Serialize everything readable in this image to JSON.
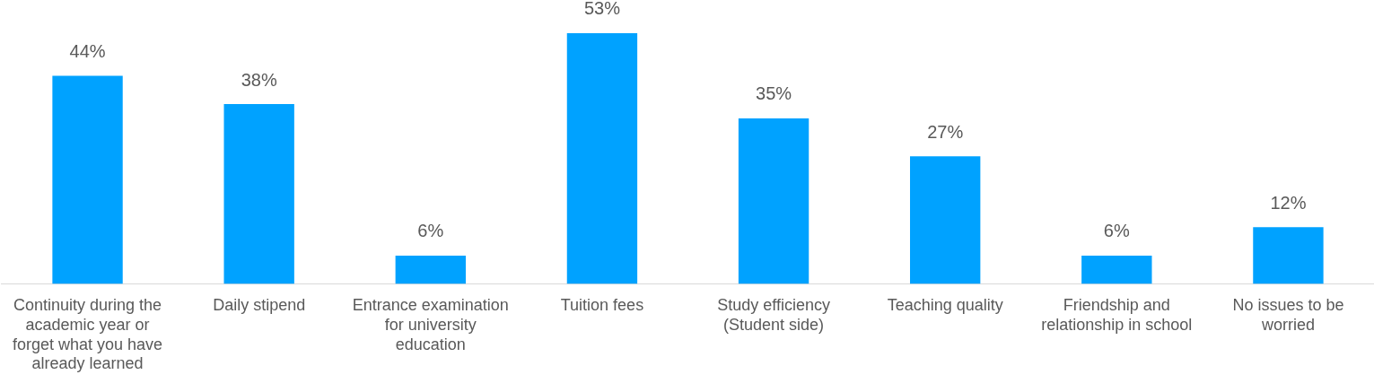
{
  "chart_data": {
    "type": "bar",
    "categories": [
      "Continuity during the academic year or forget what you have already learned",
      "Daily stipend",
      "Entrance examination for university education",
      "Tuition fees",
      "Study efficiency (Student side)",
      "Teaching quality",
      "Friendship and relationship in school",
      "No issues to be worried"
    ],
    "values": [
      44,
      38,
      6,
      53,
      35,
      27,
      6,
      12
    ],
    "value_labels": [
      "44%",
      "38%",
      "6%",
      "53%",
      "35%",
      "27%",
      "6%",
      "12%"
    ],
    "color": "#00a2ff",
    "grid": false,
    "legend": false
  }
}
